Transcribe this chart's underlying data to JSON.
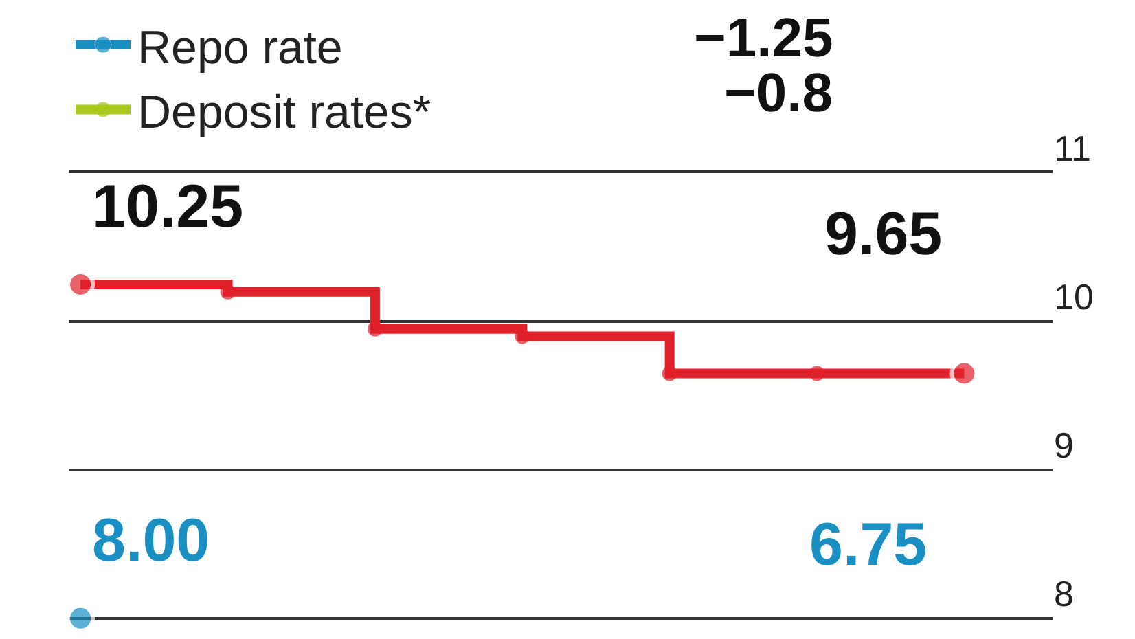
{
  "chart_data": {
    "type": "step",
    "categories": [
      null,
      null,
      null,
      null,
      null,
      null,
      null
    ],
    "series": [
      {
        "color": "#e0202a",
        "values": [
          10.25,
          10.2,
          9.95,
          9.9,
          9.65,
          9.65,
          9.65
        ],
        "value_labels": [
          "10.25",
          null,
          null,
          null,
          null,
          null,
          "9.65"
        ]
      },
      {
        "name": "Repo rate",
        "color": "#1a8fc4",
        "values": [
          8.0,
          null,
          null,
          null,
          null,
          null,
          null
        ],
        "value_labels": [
          "8.00",
          null,
          null,
          null,
          null,
          null,
          null
        ]
      },
      {
        "name": "Deposit rates*",
        "color": "#a8c81e",
        "values": [
          null,
          null,
          null,
          null,
          null,
          null,
          null
        ]
      }
    ],
    "annotations": [
      "−1.25",
      "−0.8",
      "6.75"
    ],
    "ylim": [
      7.86,
      11
    ],
    "yticks": [
      8,
      9,
      10,
      11
    ],
    "grid": "y",
    "legend": "top left",
    "marker": "circle",
    "line_style": "solid"
  }
}
